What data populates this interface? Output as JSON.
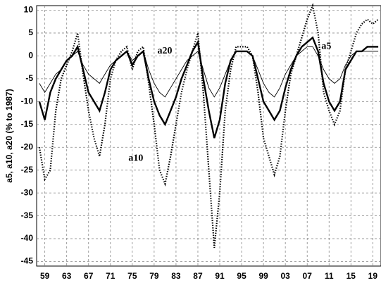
{
  "chart_data": {
    "type": "line",
    "y_label": "a5, a10, a20 (% to 1987)",
    "x": [
      1958,
      1959,
      1960,
      1961,
      1962,
      1963,
      1964,
      1965,
      1966,
      1967,
      1968,
      1969,
      1970,
      1971,
      1972,
      1973,
      1974,
      1975,
      1976,
      1977,
      1978,
      1979,
      1980,
      1981,
      1982,
      1983,
      1984,
      1985,
      1986,
      1987,
      1988,
      1989,
      1990,
      1991,
      1992,
      1993,
      1994,
      1995,
      1996,
      1997,
      1998,
      1999,
      2000,
      2001,
      2002,
      2003,
      2004,
      2005,
      2006,
      2007,
      2008,
      2009,
      2010,
      2011,
      2012,
      2013,
      2014,
      2015,
      2016,
      2017,
      2018,
      2019,
      2020
    ],
    "series": [
      {
        "name": "a5",
        "color": "#000000",
        "line_style": "dotted",
        "values": [
          -20,
          -27,
          -25,
          -12,
          -5,
          -2,
          1,
          5,
          -4,
          -12,
          -18,
          -22,
          -15,
          -5,
          -1,
          1,
          2,
          -3,
          1,
          2,
          -6,
          -15,
          -25,
          -28,
          -22,
          -15,
          -8,
          -3,
          1,
          5,
          -8,
          -25,
          -42,
          -30,
          -12,
          -3,
          2,
          2,
          2,
          0,
          -8,
          -18,
          -22,
          -26,
          -22,
          -12,
          -4,
          0,
          4,
          8,
          11,
          5,
          -8,
          -12,
          -15,
          -12,
          -3,
          1,
          5,
          7,
          8,
          7,
          8
        ]
      },
      {
        "name": "a10",
        "color": "#000000",
        "line_style": "thick",
        "values": [
          -10,
          -14,
          -8,
          -5,
          -3,
          -1,
          0,
          2,
          -3,
          -8,
          -10,
          -12,
          -8,
          -3,
          -1,
          0,
          1,
          -2,
          0,
          1,
          -5,
          -10,
          -13,
          -15,
          -12,
          -9,
          -5,
          -2,
          1,
          3,
          -5,
          -12,
          -18,
          -14,
          -6,
          -1,
          1,
          1,
          1,
          0,
          -5,
          -10,
          -12,
          -14,
          -12,
          -7,
          -3,
          0,
          2,
          3,
          4,
          1,
          -6,
          -10,
          -12,
          -10,
          -3,
          -1,
          1,
          1,
          2,
          2,
          2
        ]
      },
      {
        "name": "a20",
        "color": "#000000",
        "line_style": "thin",
        "values": [
          -6,
          -8,
          -6,
          -4,
          -3,
          -1,
          0,
          1,
          -2,
          -4,
          -5,
          -6,
          -4,
          -2,
          -1,
          0,
          1,
          -1,
          0,
          1,
          -3,
          -6,
          -8,
          -9,
          -7,
          -5,
          -3,
          -1,
          0,
          1,
          -3,
          -7,
          -9,
          -7,
          -4,
          -1,
          1,
          1,
          1,
          0,
          -3,
          -6,
          -8,
          -9,
          -7,
          -4,
          -2,
          0,
          1,
          2,
          2,
          0,
          -3,
          -5,
          -6,
          -5,
          -2,
          0,
          1,
          1,
          1,
          1,
          1
        ]
      }
    ],
    "xlim": [
      1957.5,
      2020.5
    ],
    "xticks": [
      {
        "value": 1959,
        "label": "59"
      },
      {
        "value": 1963,
        "label": "63"
      },
      {
        "value": 1967,
        "label": "67"
      },
      {
        "value": 1971,
        "label": "71"
      },
      {
        "value": 1975,
        "label": "75"
      },
      {
        "value": 1979,
        "label": "79"
      },
      {
        "value": 1983,
        "label": "83"
      },
      {
        "value": 1987,
        "label": "87"
      },
      {
        "value": 1991,
        "label": "91"
      },
      {
        "value": 1995,
        "label": "95"
      },
      {
        "value": 1999,
        "label": "99"
      },
      {
        "value": 2003,
        "label": "03"
      },
      {
        "value": 2007,
        "label": "07"
      },
      {
        "value": 2011,
        "label": "11"
      },
      {
        "value": 2015,
        "label": "15"
      },
      {
        "value": 2019,
        "label": "19"
      }
    ],
    "ylim": [
      -46,
      11
    ],
    "yticks": [
      10,
      5,
      0,
      -5,
      -10,
      -15,
      -20,
      -25,
      -30,
      -35,
      -40,
      -45
    ],
    "grid": true
  }
}
